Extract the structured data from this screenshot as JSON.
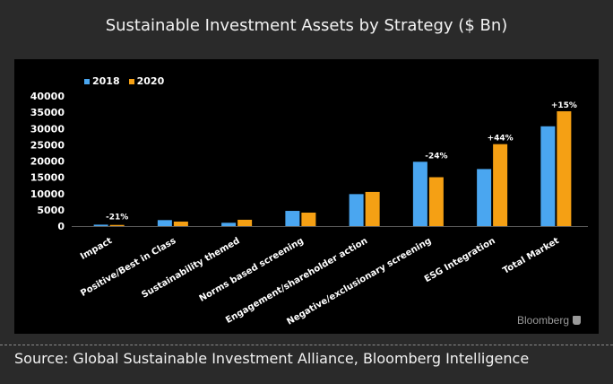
{
  "header": {
    "title": "Sustainable Investment Assets by Strategy ($ Bn)"
  },
  "footer": {
    "source": "Source: Global Sustainable Investment Alliance, Bloomberg Intelligence",
    "brand": "Bloomberg"
  },
  "colors": {
    "s2018": "#4aa6f0",
    "s2020": "#f5a014",
    "background": "#000000",
    "frame": "#2a2a2a"
  },
  "chart_data": {
    "type": "bar",
    "title": "Sustainable Investment Assets by Strategy ($ Bn)",
    "xlabel": "",
    "ylabel": "",
    "ylim": [
      0,
      40000
    ],
    "yticks": [
      "0",
      "5000",
      "10000",
      "15000",
      "20000",
      "25000",
      "30000",
      "35000",
      "40000"
    ],
    "grid": false,
    "legend_position": "top-left",
    "categories": [
      "Impact",
      "Positive/Best in Class",
      "Sustainability themed",
      "Norms based screening",
      "Engagement/shareholder action",
      "Negative/exclusionary screening",
      "ESG Integration",
      "Total Market"
    ],
    "series": [
      {
        "name": "2018",
        "values": [
          444,
          1842,
          1018,
          4679,
          9835,
          19771,
          17544,
          30683
        ]
      },
      {
        "name": "2020",
        "values": [
          352,
          1384,
          1948,
          4140,
          10504,
          15030,
          25195,
          35301
        ]
      }
    ],
    "annotations": [
      {
        "category": "Impact",
        "text": "-21%"
      },
      {
        "category": "Negative/exclusionary screening",
        "text": "-24%"
      },
      {
        "category": "ESG Integration",
        "text": "+44%"
      },
      {
        "category": "Total Market",
        "text": "+15%"
      }
    ]
  }
}
